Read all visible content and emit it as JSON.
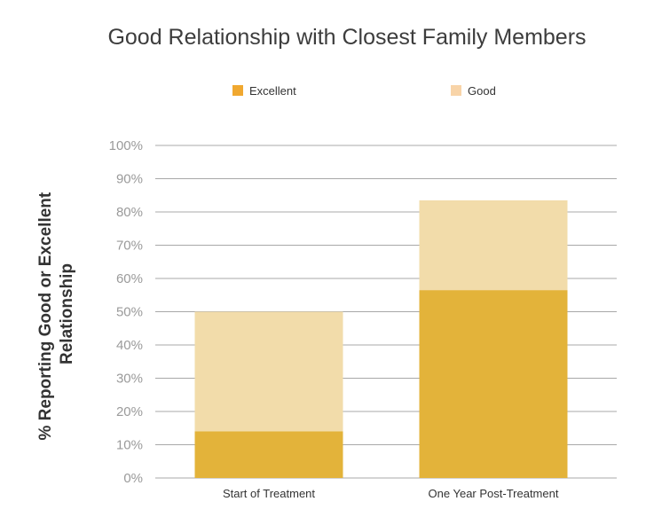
{
  "chart_data": {
    "type": "bar",
    "stacked": true,
    "title": "Good Relationship with Closest Family Members",
    "xlabel": "",
    "ylabel_lines": [
      "% Reporting Good or Excellent",
      "Relationship"
    ],
    "categories": [
      "Start of Treatment",
      "One Year Post-Treatment"
    ],
    "series": [
      {
        "name": "Excellent",
        "color": "#e3b33a",
        "legend_color": "#f0a830",
        "values": [
          14,
          56.5
        ]
      },
      {
        "name": "Good",
        "color": "#f2dcaa",
        "legend_color": "#f8d4a8",
        "values": [
          36,
          27
        ]
      }
    ],
    "ylim": [
      0,
      100
    ],
    "yticks": [
      "0%",
      "10%",
      "20%",
      "30%",
      "40%",
      "50%",
      "60%",
      "70%",
      "80%",
      "90%",
      "100%"
    ],
    "grid": true,
    "legend_position": "top"
  }
}
